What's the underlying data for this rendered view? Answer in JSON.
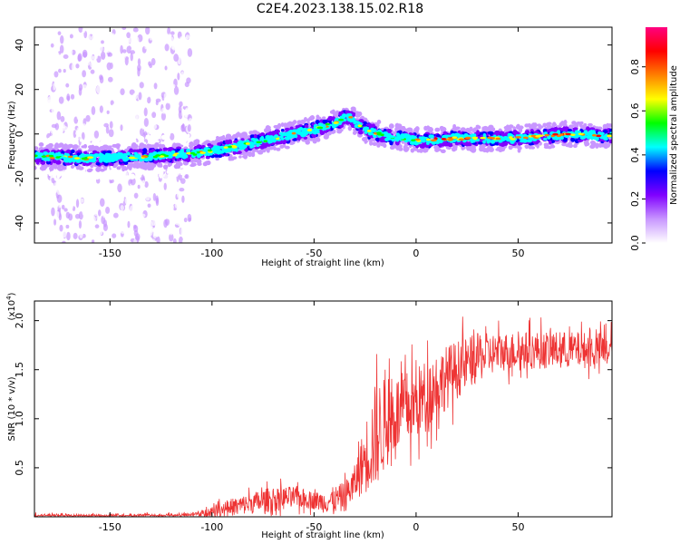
{
  "title": "C2E4.2023.138.15.02.R18",
  "colorbar": {
    "label": "Normalized spectral amplitude",
    "ticks": [
      "0.0",
      "0.2",
      "0.4",
      "0.6",
      "0.8"
    ],
    "tick_values": [
      0.0,
      0.2,
      0.4,
      0.6,
      0.8
    ],
    "range": [
      0,
      0.98
    ],
    "colors": [
      "#ffffff",
      "#c896ff",
      "#8000ff",
      "#0000ff",
      "#00ffff",
      "#00ff00",
      "#ffff00",
      "#ff8000",
      "#ff0000",
      "#ff0080"
    ]
  },
  "chart_data": [
    {
      "type": "heatmap",
      "xlabel": "Height of straight line (km)",
      "ylabel": "Frequency (Hz)",
      "xlim": [
        -187,
        96
      ],
      "ylim": [
        -49,
        48
      ],
      "xticks": [
        -150,
        -100,
        -50,
        0,
        50
      ],
      "xtick_labels": [
        "-150",
        "-100",
        "-50",
        "0",
        "50"
      ],
      "yticks": [
        -40,
        -20,
        0,
        20,
        40
      ],
      "ytick_labels": [
        "-40",
        "-20",
        "0",
        "20",
        "40"
      ],
      "ridge": {
        "x": [
          -187,
          -160,
          -130,
          -110,
          -90,
          -70,
          -50,
          -40,
          -33,
          -25,
          -15,
          -5,
          0,
          20,
          50,
          75,
          96
        ],
        "y": [
          -10,
          -11,
          -10,
          -9,
          -6,
          -2,
          2,
          5,
          8,
          2,
          -1,
          -2,
          -3,
          -2,
          -2,
          0,
          -1
        ]
      },
      "noise_band_x": [
        -180,
        -110
      ],
      "grid": false
    },
    {
      "type": "line",
      "color": "#ee3333",
      "xlabel": "Height of straight line (km)",
      "ylabel": "SNR (10 * v/v)",
      "y_multiplier_label": "(x10",
      "y_multiplier_exp": "4",
      "xlim": [
        -187,
        96
      ],
      "ylim": [
        0,
        2.2
      ],
      "xticks": [
        -150,
        -100,
        -50,
        0,
        50
      ],
      "xtick_labels": [
        "-150",
        "-100",
        "-50",
        "0",
        "50"
      ],
      "yticks": [
        0.5,
        1.0,
        1.5,
        2.0
      ],
      "ytick_labels": [
        "0.5",
        "1.0",
        "1.5",
        "2.0"
      ],
      "trend": {
        "x": [
          -187,
          -150,
          -120,
          -105,
          -95,
          -80,
          -70,
          -60,
          -45,
          -35,
          -30,
          -25,
          -20,
          -15,
          -10,
          0,
          10,
          20,
          30,
          40,
          60,
          80,
          96
        ],
        "y": [
          0.01,
          0.01,
          0.01,
          0.03,
          0.08,
          0.14,
          0.18,
          0.2,
          0.15,
          0.2,
          0.35,
          0.6,
          0.82,
          0.95,
          1.05,
          1.15,
          1.35,
          1.5,
          1.62,
          1.68,
          1.7,
          1.7,
          1.7
        ]
      },
      "noise": {
        "x": [
          -187,
          -110,
          -90,
          -70,
          -50,
          -30,
          -20,
          -10,
          10,
          40,
          96
        ],
        "amp": [
          0.02,
          0.02,
          0.09,
          0.13,
          0.09,
          0.18,
          0.55,
          0.4,
          0.35,
          0.2,
          0.18
        ]
      },
      "grid": false
    }
  ]
}
